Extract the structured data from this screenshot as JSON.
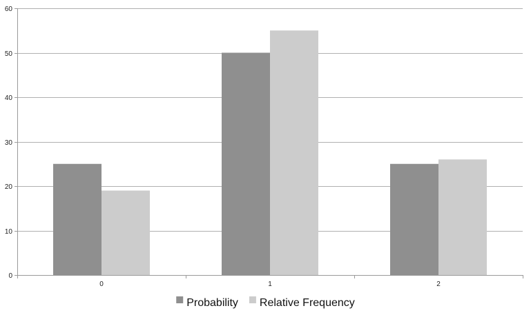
{
  "chart_data": {
    "type": "bar",
    "categories": [
      "0",
      "1",
      "2"
    ],
    "series": [
      {
        "name": "Probability",
        "values": [
          25,
          50,
          25
        ],
        "color": "#8f8f8f"
      },
      {
        "name": "Relative Frequency",
        "values": [
          19,
          55,
          26
        ],
        "color": "#cccccc"
      }
    ],
    "ylim": [
      0,
      60
    ],
    "yticks": [
      "0",
      "10",
      "20",
      "30",
      "40",
      "50",
      "60"
    ],
    "grid": true,
    "legend": "bottom",
    "gridline_color": "#b0b0b0",
    "axis_color": "#9a9a9a"
  }
}
